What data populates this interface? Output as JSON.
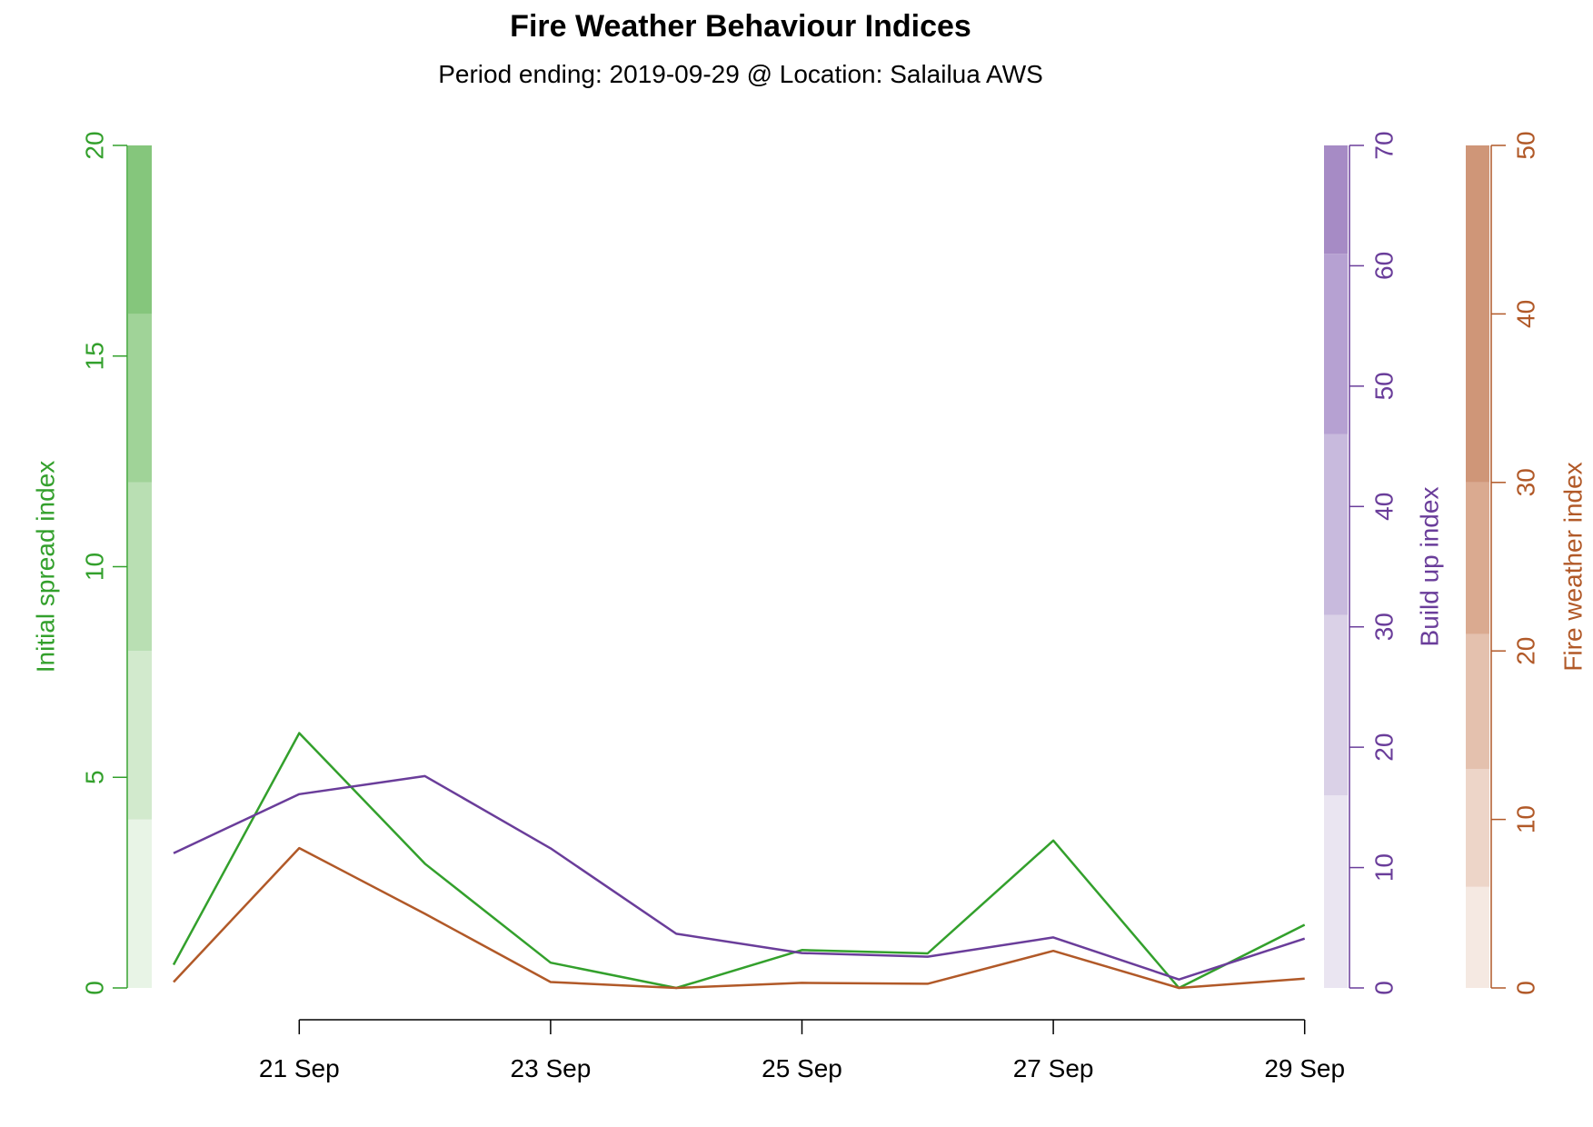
{
  "title": "Fire Weather Behaviour Indices",
  "subtitle": "Period ending: 2019-09-29 @ Location: Salailua AWS",
  "chart_data": {
    "type": "line",
    "x_dates": [
      "2019-09-20",
      "2019-09-21",
      "2019-09-22",
      "2019-09-23",
      "2019-09-24",
      "2019-09-25",
      "2019-09-26",
      "2019-09-27",
      "2019-09-28",
      "2019-09-29"
    ],
    "x_ticks": [
      {
        "date": "2019-09-21",
        "label": "21 Sep"
      },
      {
        "date": "2019-09-23",
        "label": "23 Sep"
      },
      {
        "date": "2019-09-25",
        "label": "25 Sep"
      },
      {
        "date": "2019-09-27",
        "label": "27 Sep"
      },
      {
        "date": "2019-09-29",
        "label": "29 Sep"
      }
    ],
    "series": [
      {
        "key": "isi",
        "axis_label": "Initial spread index",
        "color": "#33A02C",
        "axis_side": "left",
        "ylim": [
          0,
          20
        ],
        "ticks": [
          "0",
          "5",
          "10",
          "15",
          "20"
        ],
        "tick_values": [
          0,
          5,
          10,
          15,
          20
        ],
        "values": [
          0.55,
          6.05,
          2.95,
          0.6,
          0.0,
          0.9,
          0.82,
          3.5,
          0.0,
          1.5
        ],
        "bands": [
          {
            "from": 0,
            "to": 4,
            "color": "#E8F4E6"
          },
          {
            "from": 4,
            "to": 8,
            "color": "#D2EACD"
          },
          {
            "from": 8,
            "to": 12,
            "color": "#B9DFB3"
          },
          {
            "from": 12,
            "to": 16,
            "color": "#A0D398"
          },
          {
            "from": 16,
            "to": 20,
            "color": "#85C67C"
          }
        ]
      },
      {
        "key": "bui",
        "axis_label": "Build up index",
        "color": "#6A3D9A",
        "axis_side": "right",
        "ylim": [
          0,
          70
        ],
        "ticks": [
          "0",
          "10",
          "20",
          "30",
          "40",
          "50",
          "60",
          "70"
        ],
        "tick_values": [
          0,
          10,
          20,
          30,
          40,
          50,
          60,
          70
        ],
        "values": [
          11.2,
          16.1,
          17.6,
          11.6,
          4.5,
          2.9,
          2.6,
          4.2,
          0.7,
          4.1
        ],
        "bands": [
          {
            "from": 0,
            "to": 16,
            "color": "#EAE5F1"
          },
          {
            "from": 16,
            "to": 31,
            "color": "#DAD1E7"
          },
          {
            "from": 31,
            "to": 46,
            "color": "#C8BADD"
          },
          {
            "from": 46,
            "to": 61,
            "color": "#B6A1D2"
          },
          {
            "from": 61,
            "to": 70,
            "color": "#A68BC5"
          }
        ]
      },
      {
        "key": "fwi",
        "axis_label": "Fire weather index",
        "color": "#B15928",
        "axis_side": "right",
        "ylim": [
          0,
          50
        ],
        "ticks": [
          "0",
          "10",
          "20",
          "30",
          "40",
          "50"
        ],
        "tick_values": [
          0,
          10,
          20,
          30,
          40,
          50
        ],
        "values": [
          0.35,
          8.3,
          4.4,
          0.35,
          0.0,
          0.3,
          0.25,
          2.2,
          0.0,
          0.55
        ],
        "bands": [
          {
            "from": 0,
            "to": 6,
            "color": "#F5E9E2"
          },
          {
            "from": 6,
            "to": 13,
            "color": "#EDD5C8"
          },
          {
            "from": 13,
            "to": 21,
            "color": "#E4C1AE"
          },
          {
            "from": 21,
            "to": 30,
            "color": "#DAAA90"
          },
          {
            "from": 30,
            "to": 50,
            "color": "#CF9678"
          }
        ]
      }
    ],
    "grid": false
  }
}
